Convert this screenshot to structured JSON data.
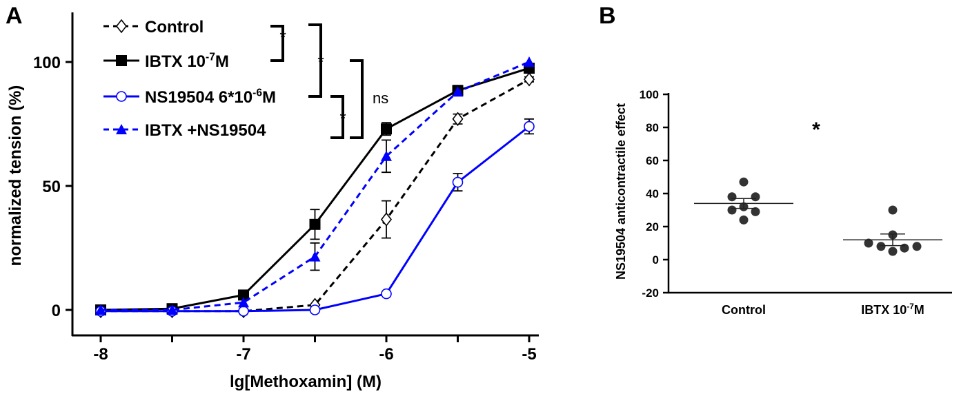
{
  "chart_data": [
    {
      "panel": "A",
      "type": "line",
      "xlabel": "lg[Methoxamin] (M)",
      "ylabel": "normalized tension (%)",
      "xlim": [
        -8.1,
        -4.85
      ],
      "ylim": [
        -10,
        120
      ],
      "xticks": [
        -8,
        -7,
        -6,
        -5
      ],
      "yticks": [
        0,
        50,
        100
      ],
      "x": [
        -8,
        -7.5,
        -7,
        -6.5,
        -6,
        -5.5,
        -5
      ],
      "legend_position": "top-left",
      "series": [
        {
          "name": "Control",
          "legend_main": "Control",
          "legend_sup": "",
          "legend_tail": "",
          "color": "#000000",
          "dashed": true,
          "marker": "diamond-open",
          "values": [
            -0.5,
            -0.5,
            -0.5,
            2,
            36.5,
            77,
            93
          ],
          "errors": [
            0,
            0,
            0,
            0,
            7.5,
            2,
            1
          ]
        },
        {
          "name": "IBTX 10^-7M",
          "legend_main": "IBTX 10",
          "legend_sup": "-7",
          "legend_tail": "M",
          "color": "#000000",
          "dashed": false,
          "marker": "square-filled",
          "values": [
            0,
            0.5,
            6,
            34.5,
            73,
            88.5,
            97.5
          ],
          "errors": [
            0,
            0,
            1,
            6,
            2.5,
            2,
            1
          ]
        },
        {
          "name": "NS19504 6*10^-6M",
          "legend_main": "NS19504 6*10",
          "legend_sup": "-6",
          "legend_tail": "M",
          "color": "#0000ff",
          "dashed": false,
          "marker": "circle-open",
          "values": [
            -0.5,
            -0.5,
            -0.5,
            0,
            6.5,
            51.5,
            74
          ],
          "errors": [
            0,
            0,
            0,
            0,
            0,
            3.5,
            3
          ]
        },
        {
          "name": "IBTX +NS19504",
          "legend_main": "IBTX +NS19504",
          "legend_sup": "",
          "legend_tail": "",
          "color": "#0000ff",
          "dashed": true,
          "marker": "triangle-filled",
          "values": [
            0,
            0,
            3,
            21.5,
            62,
            88,
            100
          ],
          "errors": [
            0,
            0,
            0,
            5.5,
            6.5,
            1,
            0
          ]
        }
      ],
      "annotations": [
        {
          "pair": [
            "Control",
            "IBTX 10^-7M"
          ],
          "text": "*"
        },
        {
          "pair": [
            "Control",
            "NS19504 6*10^-6M"
          ],
          "text": "*"
        },
        {
          "pair": [
            "NS19504 6*10^-6M",
            "IBTX +NS19504"
          ],
          "text": "*"
        },
        {
          "pair": [
            "IBTX 10^-7M",
            "IBTX +NS19504"
          ],
          "text": "ns"
        }
      ]
    },
    {
      "panel": "B",
      "type": "scatter",
      "ylabel": "NS19504 anticontractile effect",
      "ylim": [
        -20,
        100
      ],
      "yticks": [
        -20,
        0,
        20,
        40,
        60,
        80,
        100
      ],
      "categories": [
        "Control",
        "IBTX 10^-7M"
      ],
      "category_labels": [
        {
          "main": "Control",
          "sup": "",
          "tail": ""
        },
        {
          "main": "IBTX 10",
          "sup": "-7",
          "tail": "M"
        }
      ],
      "groups": [
        {
          "name": "Control",
          "values": [
            47,
            38,
            38,
            32,
            30,
            29,
            24
          ],
          "mean": 34,
          "sem": 3
        },
        {
          "name": "IBTX 10^-7M",
          "values": [
            30,
            15,
            10,
            8,
            5,
            7,
            8
          ],
          "mean": 12,
          "sem": 3.5
        }
      ],
      "point_color": "#333333",
      "annotation": "*"
    }
  ]
}
